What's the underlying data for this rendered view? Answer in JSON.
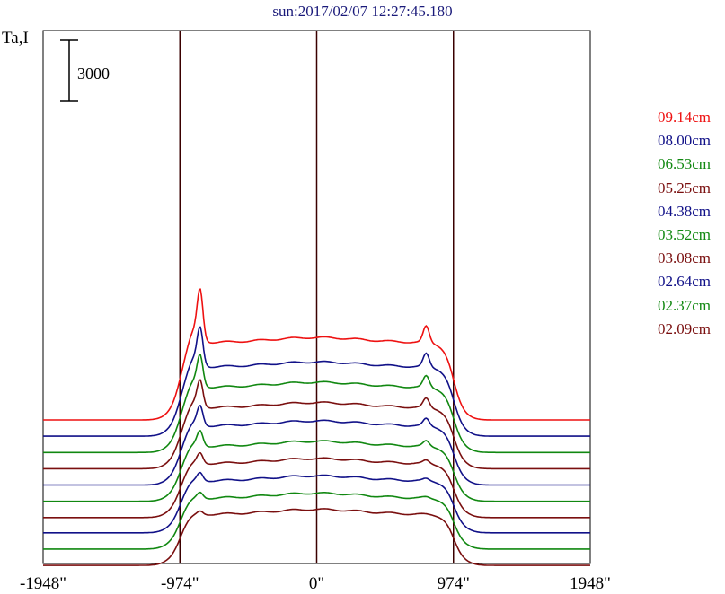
{
  "chart_data": {
    "type": "line",
    "title": "sun:2017/02/07 12:27:45.180",
    "ylabel": "Ta,I",
    "scale_bar_label": "3000",
    "x_ticks": [
      {
        "label": "-1948\"",
        "value": -1948
      },
      {
        "label": "-974\"",
        "value": -974
      },
      {
        "label": "0\"",
        "value": 0
      },
      {
        "label": "974\"",
        "value": 974
      },
      {
        "label": "1948\"",
        "value": 1948
      }
    ],
    "xlim": [
      -1948,
      1948
    ],
    "limb_markers": [
      -974,
      0,
      974
    ],
    "series_count_note": "",
    "series": [
      {
        "name": "09.14cm",
        "color": "#ee1111",
        "baseline": 6000,
        "disk_level": 3800,
        "spike_left": 2200,
        "spike_right": 800
      },
      {
        "name": "08.00cm",
        "color": "#111188",
        "baseline": 5200,
        "disk_level": 3400,
        "spike_left": 1650,
        "spike_right": 650
      },
      {
        "name": "06.53cm",
        "color": "#118811",
        "baseline": 4400,
        "disk_level": 3200,
        "spike_left": 1350,
        "spike_right": 550
      },
      {
        "name": "05.25cm",
        "color": "#7a0f0f",
        "baseline": 3600,
        "disk_level": 3000,
        "spike_left": 1150,
        "spike_right": 450
      },
      {
        "name": "04.38cm",
        "color": "#111188",
        "baseline": 2800,
        "disk_level": 2900,
        "spike_left": 850,
        "spike_right": 350
      },
      {
        "name": "03.52cm",
        "color": "#118811",
        "baseline": 2000,
        "disk_level": 2700,
        "spike_left": 650,
        "spike_right": 250
      },
      {
        "name": "03.08cm",
        "color": "#7a0f0f",
        "baseline": 1200,
        "disk_level": 2650,
        "spike_left": 450,
        "spike_right": 150
      },
      {
        "name": "02.64cm",
        "color": "#111188",
        "baseline": 450,
        "disk_level": 2550,
        "spike_left": 350,
        "spike_right": 100
      },
      {
        "name": "02.37cm",
        "color": "#118811",
        "baseline": -350,
        "disk_level": 2500,
        "spike_left": 250,
        "spike_right": 50
      },
      {
        "name": "02.09cm",
        "color": "#7a0f0f",
        "baseline": -1150,
        "disk_level": 2500,
        "spike_left": 150,
        "spike_right": 0
      }
    ]
  }
}
